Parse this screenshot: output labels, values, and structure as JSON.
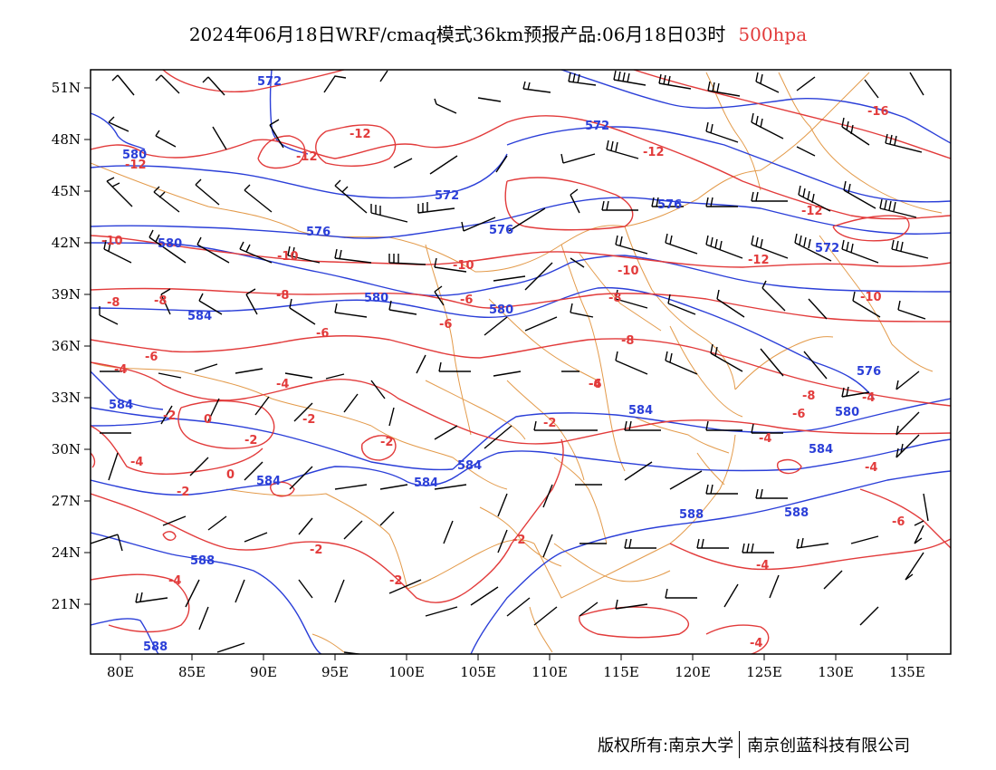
{
  "title": {
    "main": "2024年06月18日WRF/cmaq模式36km预报产品:06月18日03时",
    "level": "500hpa"
  },
  "footer": {
    "copyright": "版权所有:南京大学",
    "company": "南京创蓝科技有限公司"
  },
  "colors": {
    "height_contour": "#2b3fd8",
    "temperature_contour": "#e23b3b",
    "boundaries": "#e39a4a",
    "wind_barbs": "#000000"
  },
  "map": {
    "x_ticks": [
      "80E",
      "85E",
      "90E",
      "95E",
      "100E",
      "105E",
      "110E",
      "115E",
      "120E",
      "125E",
      "130E",
      "135E"
    ],
    "y_ticks": [
      "51N",
      "48N",
      "45N",
      "42N",
      "39N",
      "36N",
      "33N",
      "30N",
      "27N",
      "24N",
      "21N"
    ],
    "height_labels": [
      "572",
      "572",
      "572",
      "576",
      "576",
      "576",
      "580",
      "580",
      "584",
      "584",
      "588",
      "588",
      "580",
      "572",
      "580",
      "584",
      "584",
      "580",
      "584",
      "588",
      "584",
      "576",
      "584",
      "588"
    ],
    "temperature_labels": [
      "-12",
      "-12",
      "-12",
      "-10",
      "-10",
      "-10",
      "-8",
      "-8",
      "-6",
      "-6",
      "-6",
      "-4",
      "-4",
      "-2",
      "0",
      "-2",
      "0",
      "-2",
      "-2",
      "-4",
      "-2",
      "-2",
      "-2",
      "-4",
      "-4",
      "-8",
      "-6",
      "-4",
      "-8",
      "-12",
      "-12",
      "-16",
      "-12",
      "-10",
      "-4",
      "-4",
      "-6",
      "-4",
      "-4",
      "-2",
      "-6",
      "-8",
      "-6",
      "-2",
      "-8",
      "-10"
    ]
  }
}
